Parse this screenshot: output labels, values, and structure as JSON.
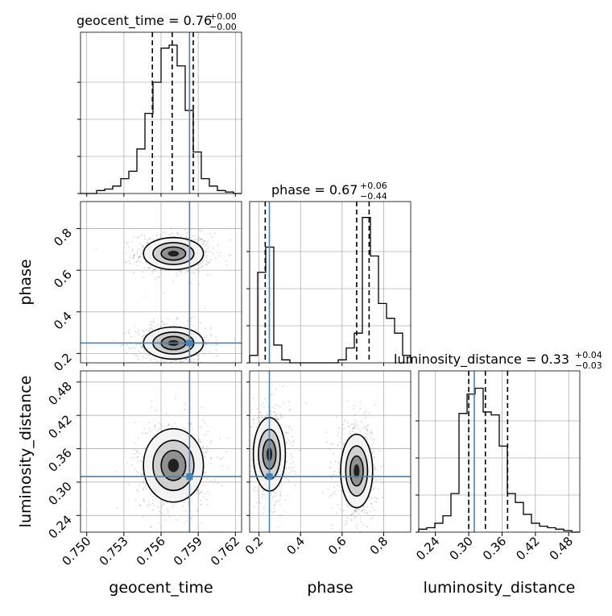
{
  "chart_data": {
    "type": "corner",
    "parameters": [
      "geocent_time",
      "phase",
      "luminosity_distance"
    ],
    "titles": [
      {
        "param": "geocent_time",
        "text": "geocent_time = 0.76",
        "plus": "+0.00",
        "minus": "−0.00"
      },
      {
        "param": "phase",
        "text": "phase = 0.67",
        "plus": "+0.06",
        "minus": "−0.44"
      },
      {
        "param": "luminosity_distance",
        "text": "luminosity_distance = 0.33",
        "plus": "+0.04",
        "minus": "−0.03"
      }
    ],
    "axis_labels": [
      "geocent_time",
      "phase",
      "luminosity_distance"
    ],
    "ticks": {
      "geocent_time": {
        "values": [
          0.75,
          0.753,
          0.756,
          0.759,
          0.762
        ],
        "labels": [
          "0.750",
          "0.753",
          "0.756",
          "0.759",
          "0.762"
        ],
        "range": [
          0.7495,
          0.7625
        ]
      },
      "phase": {
        "values": [
          0.2,
          0.4,
          0.6,
          0.8
        ],
        "labels": [
          "0.2",
          "0.4",
          "0.6",
          "0.8"
        ],
        "range": [
          0.155,
          0.93
        ]
      },
      "luminosity_distance": {
        "values": [
          0.24,
          0.3,
          0.36,
          0.42,
          0.48
        ],
        "labels": [
          "0.24",
          "0.30",
          "0.36",
          "0.42",
          "0.48"
        ],
        "range": [
          0.21,
          0.5
        ]
      }
    },
    "truths": {
      "geocent_time": 0.7583,
      "phase": 0.25,
      "luminosity_distance": 0.31
    },
    "quantiles": {
      "geocent_time": [
        0.7553,
        0.7569,
        0.7586
      ],
      "phase": [
        0.23,
        0.67,
        0.73
      ],
      "luminosity_distance": [
        0.3,
        0.33,
        0.37
      ]
    },
    "histograms": {
      "geocent_time": {
        "edges_start": 0.7495,
        "bin_width": 0.00065,
        "counts": [
          0,
          0,
          0.02,
          0.03,
          0.05,
          0.1,
          0.15,
          0.3,
          0.54,
          0.75,
          0.98,
          1.0,
          0.86,
          0.56,
          0.28,
          0.1,
          0.05,
          0.02,
          0.01,
          0
        ]
      },
      "phase": {
        "edges_start": 0.155,
        "bin_width": 0.03875,
        "counts": [
          0.05,
          0.61,
          0.78,
          0.12,
          0.02,
          0,
          0,
          0,
          0,
          0,
          0,
          0.02,
          0.1,
          0.2,
          0.98,
          0.72,
          0.4,
          0.3,
          0.2,
          0.05
        ]
      },
      "luminosity_distance": {
        "edges_start": 0.21,
        "bin_width": 0.0145,
        "counts": [
          0.02,
          0.03,
          0.06,
          0.11,
          0.26,
          0.8,
          0.93,
          0.97,
          0.81,
          0.79,
          0.58,
          0.26,
          0.2,
          0.12,
          0.06,
          0.04,
          0.03,
          0.02,
          0.01,
          0
        ]
      }
    },
    "contours_2d": [
      {
        "x": "geocent_time",
        "y": "phase",
        "modes": [
          {
            "x": 0.757,
            "y": 0.68
          },
          {
            "x": 0.757,
            "y": 0.25
          }
        ]
      },
      {
        "x": "geocent_time",
        "y": "luminosity_distance",
        "modes": [
          {
            "x": 0.757,
            "y": 0.33
          }
        ]
      },
      {
        "x": "phase",
        "y": "luminosity_distance",
        "modes": [
          {
            "x": 0.25,
            "y": 0.35
          },
          {
            "x": 0.67,
            "y": 0.32
          }
        ]
      }
    ],
    "colors": {
      "truth": "#4682b4",
      "hist": "#000000",
      "grid": "#b0b0b0"
    }
  }
}
